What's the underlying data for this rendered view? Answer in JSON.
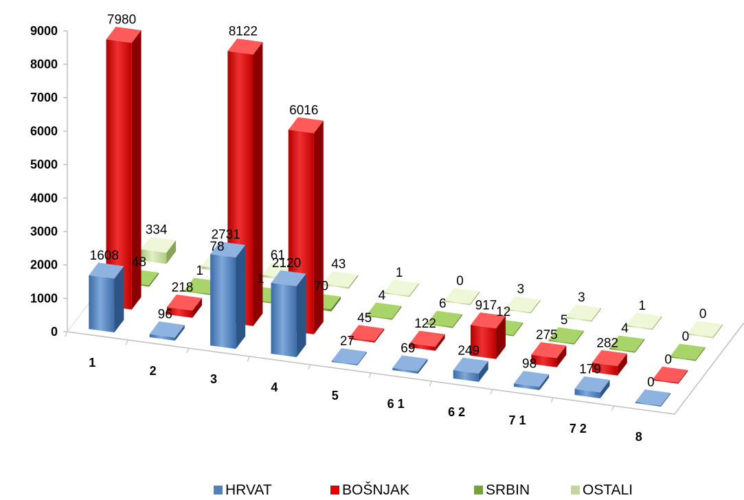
{
  "chart_data": {
    "type": "bar",
    "subtype": "3d-clustered-column",
    "title": "",
    "xlabel": "",
    "ylabel": "",
    "ylim": [
      0,
      9000
    ],
    "yticks": [
      "0",
      "1000",
      "2000",
      "3000",
      "4000",
      "5000",
      "6000",
      "7000",
      "8000",
      "9000"
    ],
    "categories": [
      "1",
      "2",
      "3",
      "4",
      "5",
      "6 1",
      "6 2",
      "7 1",
      "7 2",
      "8"
    ],
    "legend_position": "bottom",
    "gridlines": false,
    "series": [
      {
        "name": "HRVAT",
        "color": "#4F81BD",
        "values": [
          1608,
          96,
          2731,
          2120,
          27,
          69,
          249,
          98,
          179,
          0
        ],
        "labels": [
          "1608",
          "96",
          "2731",
          "2120",
          "27",
          "69",
          "249",
          "98",
          "179",
          "0"
        ]
      },
      {
        "name": "BOŠNJAK",
        "color": "#E00000",
        "values": [
          7980,
          218,
          8122,
          6016,
          45,
          122,
          917,
          275,
          282,
          0
        ],
        "labels": [
          "7980",
          "218",
          "8122",
          "6016",
          "45",
          "122",
          "917",
          "275",
          "282",
          "0"
        ]
      },
      {
        "name": "SRBIN",
        "color": "#77A13A",
        "values": [
          48,
          1,
          1,
          70,
          4,
          6,
          12,
          5,
          4,
          0
        ],
        "labels": [
          "48",
          "1",
          "1",
          "70",
          "4",
          "6",
          "12",
          "5",
          "4",
          "0"
        ]
      },
      {
        "name": "OSTALI",
        "color": "#C3D69B",
        "values": [
          334,
          78,
          61,
          43,
          1,
          0,
          3,
          3,
          1,
          0
        ],
        "labels": [
          "334",
          "78",
          "61",
          "43",
          "1",
          "0",
          "3",
          "3",
          "1",
          "0"
        ]
      }
    ]
  }
}
